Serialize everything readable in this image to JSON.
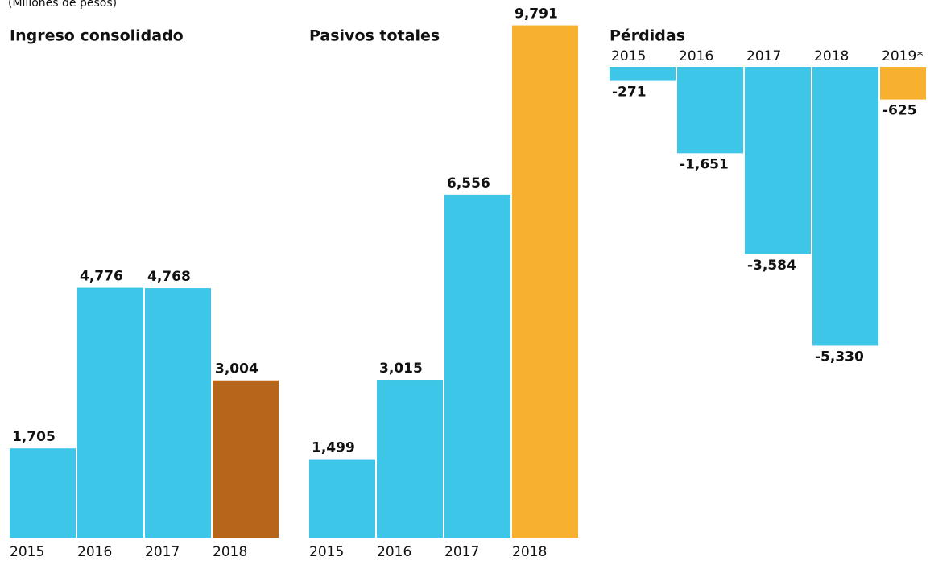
{
  "header": {
    "subtitle": "(Millones de pesos)"
  },
  "chart_data": [
    {
      "type": "bar",
      "title": "Ingreso consolidado",
      "categories": [
        "2015",
        "2016",
        "2017",
        "2018"
      ],
      "values": [
        1705,
        4776,
        4768,
        3004
      ],
      "value_labels": [
        "1,705",
        "4,776",
        "4,768",
        "3,004"
      ],
      "colors": [
        "#3ec6e8",
        "#3ec6e8",
        "#3ec6e8",
        "#b8651c"
      ]
    },
    {
      "type": "bar",
      "title": "Pasivos totales",
      "categories": [
        "2015",
        "2016",
        "2017",
        "2018"
      ],
      "values": [
        1499,
        3015,
        6556,
        9791
      ],
      "value_labels": [
        "1,499",
        "3,015",
        "6,556",
        "9,791"
      ],
      "colors": [
        "#3ec6e8",
        "#3ec6e8",
        "#3ec6e8",
        "#f7b12e"
      ]
    },
    {
      "type": "bar",
      "title": "Pérdidas",
      "categories": [
        "2015",
        "2016",
        "2017",
        "2018",
        "2019*"
      ],
      "values": [
        -271,
        -1651,
        -3584,
        -5330,
        -625
      ],
      "value_labels": [
        "-271",
        "-1,651",
        "-3,584",
        "-5,330",
        "-625"
      ],
      "colors": [
        "#3ec6e8",
        "#3ec6e8",
        "#3ec6e8",
        "#3ec6e8",
        "#f7b12e"
      ]
    }
  ]
}
